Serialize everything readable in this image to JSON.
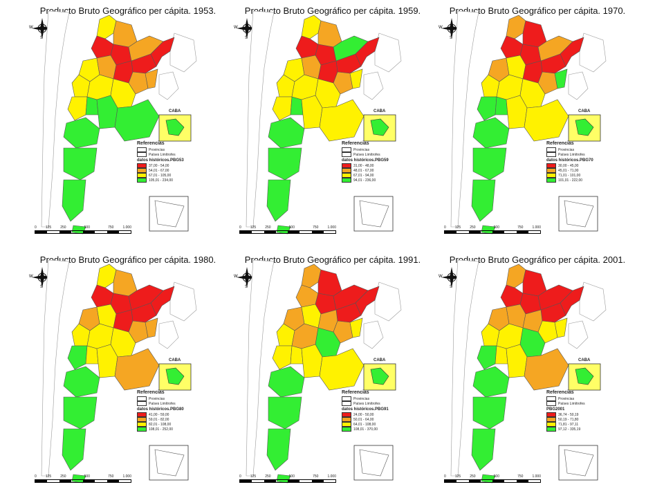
{
  "colors": {
    "red": "#ee1c1c",
    "orange": "#f5a623",
    "yellow": "#fff200",
    "green": "#33ee33",
    "neighbor": "#ffffff",
    "border": "#555555"
  },
  "compass": {
    "n": "",
    "s": "S",
    "w": "W",
    "e": "E"
  },
  "scale_ticks": [
    "0",
    "125",
    "250",
    "",
    "500",
    "",
    "750",
    "1.000"
  ],
  "common_legend": {
    "title": "Referencias",
    "provincias": "Provincias",
    "paises": "Países Limítrofes"
  },
  "caba_label": "CABA",
  "maps": [
    {
      "title": "Producto Bruto Geográfico per cápita. 1953.",
      "var_label": "datos históricos.PBG53",
      "ranges": [
        "37,00 - 54,00",
        "54,01 - 67,00",
        "67,01 - 105,00",
        "105,01 - 234,00"
      ],
      "caba_class": "green",
      "regions": [
        "yellow",
        "orange",
        "red",
        "red",
        "red",
        "orange",
        "red",
        "yellow",
        "orange",
        "red",
        "orange",
        "yellow",
        "yellow",
        "yellow",
        "orange",
        "yellow",
        "green",
        "green",
        "green",
        "green",
        "green",
        "green"
      ]
    },
    {
      "title": "Producto Bruto Geográfico per cápita. 1959.",
      "var_label": "datos históricos.PBG59",
      "ranges": [
        "31,00 - 48,00",
        "48,01 - 67,00",
        "67,01 - 94,00",
        "94,01 - 236,00"
      ],
      "caba_class": "green",
      "regions": [
        "yellow",
        "orange",
        "red",
        "red",
        "red",
        "green",
        "red",
        "yellow",
        "orange",
        "red",
        "orange",
        "yellow",
        "yellow",
        "yellow",
        "yellow",
        "yellow",
        "green",
        "yellow",
        "yellow",
        "green",
        "green",
        "green"
      ]
    },
    {
      "title": "Producto Bruto Geográfico per cápita. 1970.",
      "var_label": "datos históricos.PBG70",
      "ranges": [
        "30,00 - 45,00",
        "45,01 - 71,00",
        "71,01 - 101,00",
        "101,01 - 222,00"
      ],
      "caba_class": "green",
      "regions": [
        "orange",
        "red",
        "red",
        "red",
        "red",
        "orange",
        "red",
        "orange",
        "yellow",
        "red",
        "orange",
        "yellow",
        "yellow",
        "yellow",
        "green",
        "green",
        "green",
        "yellow",
        "yellow",
        "green",
        "green",
        "green"
      ]
    },
    {
      "title": "Producto Bruto Geográfico per cápita. 1980.",
      "var_label": "datos históricos.PBG80",
      "ranges": [
        "41,00 - 59,00",
        "59,01 - 82,00",
        "82,01 - 108,00",
        "108,01 - 252,00"
      ],
      "caba_class": "green",
      "regions": [
        "yellow",
        "orange",
        "red",
        "red",
        "red",
        "red",
        "red",
        "orange",
        "yellow",
        "red",
        "orange",
        "yellow",
        "yellow",
        "yellow",
        "orange",
        "green",
        "yellow",
        "yellow",
        "orange",
        "green",
        "green",
        "green"
      ]
    },
    {
      "title": "Producto Bruto Geográfico per cápita. 1991.",
      "var_label": "datos históricos.PBG91",
      "ranges": [
        "24,00 - 50,00",
        "50,01 - 64,00",
        "64,01 - 108,00",
        "108,01 - 370,00"
      ],
      "caba_class": "green",
      "regions": [
        "orange",
        "red",
        "orange",
        "red",
        "red",
        "red",
        "red",
        "orange",
        "yellow",
        "orange",
        "orange",
        "yellow",
        "orange",
        "green",
        "yellow",
        "yellow",
        "yellow",
        "yellow",
        "yellow",
        "green",
        "green",
        "green"
      ]
    },
    {
      "title": "Producto Bruto Geográfico per cápita. 2001.",
      "var_label": "PBG2001",
      "ranges": [
        "36,74 - 50,19",
        "50,19 - 71,80",
        "71,81 - 97,11",
        "97,12 - 335,19"
      ],
      "caba_class": "green",
      "regions": [
        "orange",
        "red",
        "red",
        "red",
        "red",
        "red",
        "red",
        "orange",
        "orange",
        "orange",
        "yellow",
        "yellow",
        "yellow",
        "green",
        "yellow",
        "green",
        "yellow",
        "yellow",
        "orange",
        "green",
        "green",
        "green"
      ]
    }
  ]
}
